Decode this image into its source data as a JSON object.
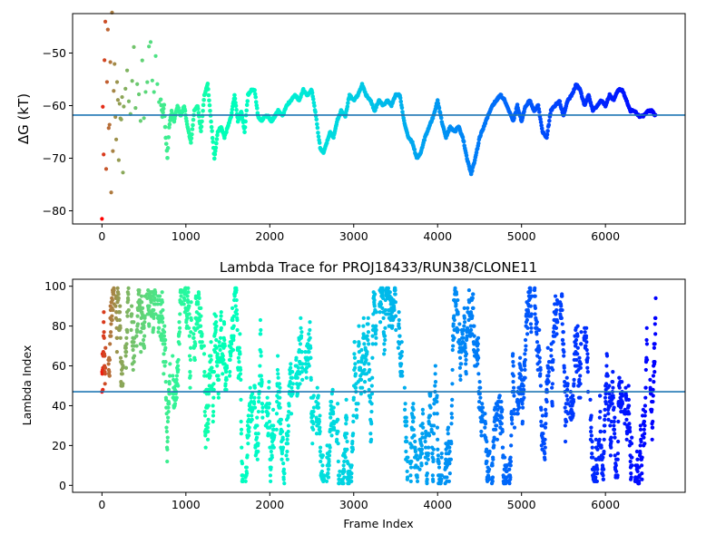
{
  "chart_data": [
    {
      "type": "scatter",
      "title": "",
      "xlabel": "",
      "ylabel": "ΔG (kT)",
      "xlim": [
        -350,
        6950
      ],
      "ylim": [
        -82.5,
        -42.5
      ],
      "xticks": [
        0,
        1000,
        2000,
        3000,
        4000,
        5000,
        6000
      ],
      "yticks": [
        -80,
        -70,
        -60,
        -50
      ],
      "reference_line": -61.8,
      "color_by": "frame index (rainbow colormap)",
      "trace": [
        [
          0,
          -80
        ],
        [
          10,
          -60
        ],
        [
          20,
          -70
        ],
        [
          30,
          -50
        ],
        [
          40,
          -43
        ],
        [
          50,
          -72
        ],
        [
          60,
          -56
        ],
        [
          70,
          -47
        ],
        [
          80,
          -65
        ],
        [
          90,
          -62
        ],
        [
          100,
          -53
        ],
        [
          110,
          -75
        ],
        [
          120,
          -44
        ],
        [
          130,
          -68
        ],
        [
          140,
          -58
        ],
        [
          150,
          -52
        ],
        [
          160,
          -63
        ],
        [
          170,
          -66
        ],
        [
          180,
          -55
        ],
        [
          190,
          -60
        ],
        [
          200,
          -71
        ],
        [
          210,
          -59
        ],
        [
          220,
          -62
        ],
        [
          230,
          -64
        ],
        [
          240,
          -57
        ],
        [
          250,
          -74
        ],
        [
          260,
          -61
        ],
        [
          280,
          -58
        ],
        [
          300,
          -54
        ],
        [
          320,
          -60
        ],
        [
          340,
          -62
        ],
        [
          360,
          -57
        ],
        [
          380,
          -48
        ],
        [
          400,
          -61
        ],
        [
          420,
          -56
        ],
        [
          440,
          -59
        ],
        [
          460,
          -63
        ],
        [
          480,
          -52
        ],
        [
          500,
          -62
        ],
        [
          520,
          -58
        ],
        [
          540,
          -54
        ],
        [
          560,
          -50
        ],
        [
          580,
          -48
        ],
        [
          600,
          -54
        ],
        [
          620,
          -56
        ],
        [
          640,
          -52
        ],
        [
          660,
          -57
        ],
        [
          680,
          -61
        ],
        [
          700,
          -59
        ],
        [
          720,
          -62
        ],
        [
          740,
          -60
        ],
        [
          760,
          -66
        ],
        [
          780,
          -70
        ],
        [
          800,
          -64
        ],
        [
          830,
          -61
        ],
        [
          860,
          -63
        ],
        [
          900,
          -60
        ],
        [
          940,
          -62
        ],
        [
          980,
          -60
        ],
        [
          1020,
          -64
        ],
        [
          1060,
          -67
        ],
        [
          1100,
          -61
        ],
        [
          1140,
          -60
        ],
        [
          1180,
          -65
        ],
        [
          1220,
          -58
        ],
        [
          1260,
          -56
        ],
        [
          1300,
          -63
        ],
        [
          1340,
          -70
        ],
        [
          1380,
          -65
        ],
        [
          1420,
          -64
        ],
        [
          1460,
          -66
        ],
        [
          1500,
          -64
        ],
        [
          1540,
          -62
        ],
        [
          1580,
          -58
        ],
        [
          1620,
          -63
        ],
        [
          1660,
          -61
        ],
        [
          1700,
          -65
        ],
        [
          1740,
          -58
        ],
        [
          1780,
          -57
        ],
        [
          1820,
          -57
        ],
        [
          1860,
          -62
        ],
        [
          1900,
          -63
        ],
        [
          1940,
          -62
        ],
        [
          1980,
          -62
        ],
        [
          2020,
          -63
        ],
        [
          2060,
          -62
        ],
        [
          2100,
          -61
        ],
        [
          2150,
          -62
        ],
        [
          2200,
          -60
        ],
        [
          2250,
          -59
        ],
        [
          2300,
          -58
        ],
        [
          2350,
          -59
        ],
        [
          2400,
          -57
        ],
        [
          2450,
          -58
        ],
        [
          2500,
          -57
        ],
        [
          2550,
          -62
        ],
        [
          2600,
          -68
        ],
        [
          2640,
          -69
        ],
        [
          2680,
          -67
        ],
        [
          2720,
          -65
        ],
        [
          2760,
          -66
        ],
        [
          2800,
          -63
        ],
        [
          2850,
          -61
        ],
        [
          2900,
          -62
        ],
        [
          2950,
          -58
        ],
        [
          3000,
          -59
        ],
        [
          3050,
          -58
        ],
        [
          3100,
          -56
        ],
        [
          3150,
          -58
        ],
        [
          3200,
          -59
        ],
        [
          3250,
          -61
        ],
        [
          3300,
          -59
        ],
        [
          3350,
          -60
        ],
        [
          3400,
          -59
        ],
        [
          3450,
          -60
        ],
        [
          3500,
          -58
        ],
        [
          3550,
          -58
        ],
        [
          3600,
          -63
        ],
        [
          3650,
          -66
        ],
        [
          3700,
          -67
        ],
        [
          3750,
          -70
        ],
        [
          3800,
          -69
        ],
        [
          3850,
          -66
        ],
        [
          3900,
          -64
        ],
        [
          3950,
          -62
        ],
        [
          4000,
          -59
        ],
        [
          4050,
          -63
        ],
        [
          4100,
          -66
        ],
        [
          4150,
          -64
        ],
        [
          4200,
          -65
        ],
        [
          4250,
          -64
        ],
        [
          4300,
          -66
        ],
        [
          4350,
          -70
        ],
        [
          4400,
          -73
        ],
        [
          4450,
          -70
        ],
        [
          4500,
          -66
        ],
        [
          4550,
          -64
        ],
        [
          4600,
          -62
        ],
        [
          4650,
          -60
        ],
        [
          4700,
          -59
        ],
        [
          4750,
          -58
        ],
        [
          4800,
          -59
        ],
        [
          4850,
          -61
        ],
        [
          4900,
          -63
        ],
        [
          4950,
          -60
        ],
        [
          5000,
          -63
        ],
        [
          5050,
          -60
        ],
        [
          5100,
          -59
        ],
        [
          5150,
          -61
        ],
        [
          5200,
          -60
        ],
        [
          5250,
          -65
        ],
        [
          5300,
          -66
        ],
        [
          5350,
          -61
        ],
        [
          5400,
          -60
        ],
        [
          5450,
          -59
        ],
        [
          5500,
          -62
        ],
        [
          5550,
          -59
        ],
        [
          5600,
          -58
        ],
        [
          5650,
          -56
        ],
        [
          5700,
          -57
        ],
        [
          5750,
          -60
        ],
        [
          5800,
          -58
        ],
        [
          5850,
          -61
        ],
        [
          5900,
          -60
        ],
        [
          5950,
          -59
        ],
        [
          6000,
          -60
        ],
        [
          6050,
          -58
        ],
        [
          6100,
          -59
        ],
        [
          6150,
          -57
        ],
        [
          6200,
          -57
        ],
        [
          6250,
          -59
        ],
        [
          6300,
          -61
        ],
        [
          6350,
          -61
        ],
        [
          6400,
          -62
        ],
        [
          6450,
          -62
        ],
        [
          6500,
          -61
        ],
        [
          6550,
          -61
        ],
        [
          6600,
          -62
        ]
      ]
    },
    {
      "type": "scatter",
      "title": "Lambda Trace for PROJ18433/RUN38/CLONE11",
      "xlabel": "Frame Index",
      "ylabel": "Lambda Index",
      "xlim": [
        -350,
        6950
      ],
      "ylim": [
        -3.5,
        103.5
      ],
      "xticks": [
        0,
        1000,
        2000,
        3000,
        4000,
        5000,
        6000
      ],
      "yticks": [
        0,
        20,
        40,
        60,
        80,
        100
      ],
      "reference_line": 47,
      "color_by": "frame index (rainbow colormap)",
      "num_frames": 6600,
      "seed": 18433
    }
  ]
}
